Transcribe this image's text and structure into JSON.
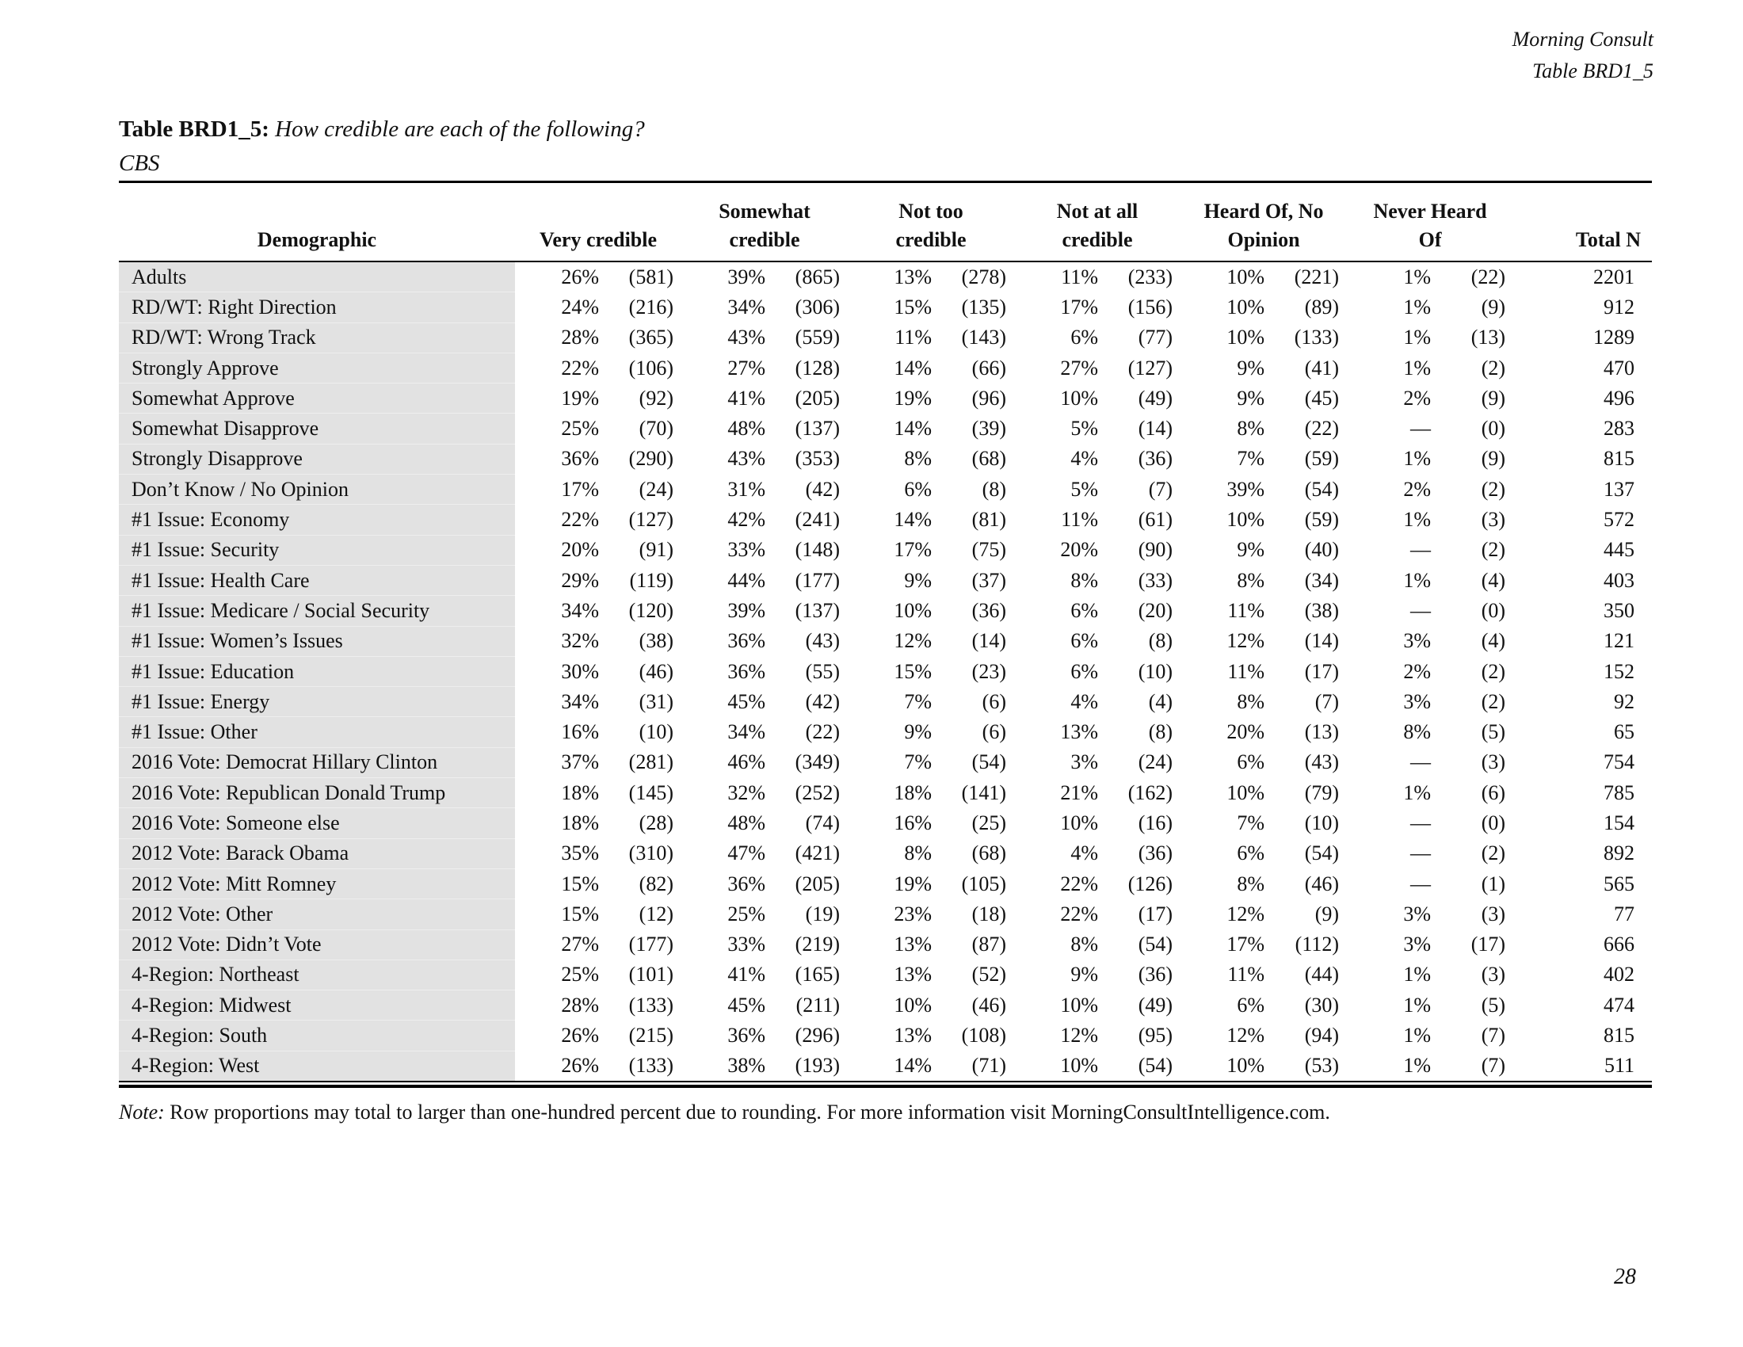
{
  "document": {
    "brand": "Morning Consult",
    "table_ref": "Table BRD1_5",
    "title_prefix": "Table BRD1_5:",
    "title_question": "How credible are each of the following?",
    "subtitle": "CBS",
    "note_label": "Note:",
    "note_body": "Row proportions may total to larger than one-hundred percent due to rounding. For more information visit MorningConsultIntelligence.com.",
    "page_number": "28"
  },
  "table": {
    "header": {
      "demographic": "Demographic",
      "categories": [
        {
          "line1": "",
          "line2": "Very credible"
        },
        {
          "line1": "Somewhat",
          "line2": "credible"
        },
        {
          "line1": "Not too",
          "line2": "credible"
        },
        {
          "line1": "Not at all",
          "line2": "credible"
        },
        {
          "line1": "Heard Of, No",
          "line2": "Opinion"
        },
        {
          "line1": "Never Heard",
          "line2": "Of"
        }
      ],
      "total": "Total N"
    },
    "rows": [
      {
        "label": "Adults",
        "cells": [
          {
            "pct": "26%",
            "n": "(581)"
          },
          {
            "pct": "39%",
            "n": "(865)"
          },
          {
            "pct": "13%",
            "n": "(278)"
          },
          {
            "pct": "11%",
            "n": "(233)"
          },
          {
            "pct": "10%",
            "n": "(221)"
          },
          {
            "pct": "1%",
            "n": "(22)"
          }
        ],
        "total": "2201"
      },
      {
        "label": "RD/WT: Right Direction",
        "cells": [
          {
            "pct": "24%",
            "n": "(216)"
          },
          {
            "pct": "34%",
            "n": "(306)"
          },
          {
            "pct": "15%",
            "n": "(135)"
          },
          {
            "pct": "17%",
            "n": "(156)"
          },
          {
            "pct": "10%",
            "n": "(89)"
          },
          {
            "pct": "1%",
            "n": "(9)"
          }
        ],
        "total": "912"
      },
      {
        "label": "RD/WT: Wrong Track",
        "cells": [
          {
            "pct": "28%",
            "n": "(365)"
          },
          {
            "pct": "43%",
            "n": "(559)"
          },
          {
            "pct": "11%",
            "n": "(143)"
          },
          {
            "pct": "6%",
            "n": "(77)"
          },
          {
            "pct": "10%",
            "n": "(133)"
          },
          {
            "pct": "1%",
            "n": "(13)"
          }
        ],
        "total": "1289"
      },
      {
        "label": "Strongly Approve",
        "cells": [
          {
            "pct": "22%",
            "n": "(106)"
          },
          {
            "pct": "27%",
            "n": "(128)"
          },
          {
            "pct": "14%",
            "n": "(66)"
          },
          {
            "pct": "27%",
            "n": "(127)"
          },
          {
            "pct": "9%",
            "n": "(41)"
          },
          {
            "pct": "1%",
            "n": "(2)"
          }
        ],
        "total": "470"
      },
      {
        "label": "Somewhat Approve",
        "cells": [
          {
            "pct": "19%",
            "n": "(92)"
          },
          {
            "pct": "41%",
            "n": "(205)"
          },
          {
            "pct": "19%",
            "n": "(96)"
          },
          {
            "pct": "10%",
            "n": "(49)"
          },
          {
            "pct": "9%",
            "n": "(45)"
          },
          {
            "pct": "2%",
            "n": "(9)"
          }
        ],
        "total": "496"
      },
      {
        "label": "Somewhat Disapprove",
        "cells": [
          {
            "pct": "25%",
            "n": "(70)"
          },
          {
            "pct": "48%",
            "n": "(137)"
          },
          {
            "pct": "14%",
            "n": "(39)"
          },
          {
            "pct": "5%",
            "n": "(14)"
          },
          {
            "pct": "8%",
            "n": "(22)"
          },
          {
            "pct": "—",
            "n": "(0)"
          }
        ],
        "total": "283"
      },
      {
        "label": "Strongly Disapprove",
        "cells": [
          {
            "pct": "36%",
            "n": "(290)"
          },
          {
            "pct": "43%",
            "n": "(353)"
          },
          {
            "pct": "8%",
            "n": "(68)"
          },
          {
            "pct": "4%",
            "n": "(36)"
          },
          {
            "pct": "7%",
            "n": "(59)"
          },
          {
            "pct": "1%",
            "n": "(9)"
          }
        ],
        "total": "815"
      },
      {
        "label": "Don’t Know / No Opinion",
        "cells": [
          {
            "pct": "17%",
            "n": "(24)"
          },
          {
            "pct": "31%",
            "n": "(42)"
          },
          {
            "pct": "6%",
            "n": "(8)"
          },
          {
            "pct": "5%",
            "n": "(7)"
          },
          {
            "pct": "39%",
            "n": "(54)"
          },
          {
            "pct": "2%",
            "n": "(2)"
          }
        ],
        "total": "137"
      },
      {
        "label": "#1 Issue: Economy",
        "cells": [
          {
            "pct": "22%",
            "n": "(127)"
          },
          {
            "pct": "42%",
            "n": "(241)"
          },
          {
            "pct": "14%",
            "n": "(81)"
          },
          {
            "pct": "11%",
            "n": "(61)"
          },
          {
            "pct": "10%",
            "n": "(59)"
          },
          {
            "pct": "1%",
            "n": "(3)"
          }
        ],
        "total": "572"
      },
      {
        "label": "#1 Issue: Security",
        "cells": [
          {
            "pct": "20%",
            "n": "(91)"
          },
          {
            "pct": "33%",
            "n": "(148)"
          },
          {
            "pct": "17%",
            "n": "(75)"
          },
          {
            "pct": "20%",
            "n": "(90)"
          },
          {
            "pct": "9%",
            "n": "(40)"
          },
          {
            "pct": "—",
            "n": "(2)"
          }
        ],
        "total": "445"
      },
      {
        "label": "#1 Issue: Health Care",
        "cells": [
          {
            "pct": "29%",
            "n": "(119)"
          },
          {
            "pct": "44%",
            "n": "(177)"
          },
          {
            "pct": "9%",
            "n": "(37)"
          },
          {
            "pct": "8%",
            "n": "(33)"
          },
          {
            "pct": "8%",
            "n": "(34)"
          },
          {
            "pct": "1%",
            "n": "(4)"
          }
        ],
        "total": "403"
      },
      {
        "label": "#1 Issue: Medicare / Social Security",
        "cells": [
          {
            "pct": "34%",
            "n": "(120)"
          },
          {
            "pct": "39%",
            "n": "(137)"
          },
          {
            "pct": "10%",
            "n": "(36)"
          },
          {
            "pct": "6%",
            "n": "(20)"
          },
          {
            "pct": "11%",
            "n": "(38)"
          },
          {
            "pct": "—",
            "n": "(0)"
          }
        ],
        "total": "350"
      },
      {
        "label": "#1 Issue: Women’s Issues",
        "cells": [
          {
            "pct": "32%",
            "n": "(38)"
          },
          {
            "pct": "36%",
            "n": "(43)"
          },
          {
            "pct": "12%",
            "n": "(14)"
          },
          {
            "pct": "6%",
            "n": "(8)"
          },
          {
            "pct": "12%",
            "n": "(14)"
          },
          {
            "pct": "3%",
            "n": "(4)"
          }
        ],
        "total": "121"
      },
      {
        "label": "#1 Issue: Education",
        "cells": [
          {
            "pct": "30%",
            "n": "(46)"
          },
          {
            "pct": "36%",
            "n": "(55)"
          },
          {
            "pct": "15%",
            "n": "(23)"
          },
          {
            "pct": "6%",
            "n": "(10)"
          },
          {
            "pct": "11%",
            "n": "(17)"
          },
          {
            "pct": "2%",
            "n": "(2)"
          }
        ],
        "total": "152"
      },
      {
        "label": "#1 Issue: Energy",
        "cells": [
          {
            "pct": "34%",
            "n": "(31)"
          },
          {
            "pct": "45%",
            "n": "(42)"
          },
          {
            "pct": "7%",
            "n": "(6)"
          },
          {
            "pct": "4%",
            "n": "(4)"
          },
          {
            "pct": "8%",
            "n": "(7)"
          },
          {
            "pct": "3%",
            "n": "(2)"
          }
        ],
        "total": "92"
      },
      {
        "label": "#1 Issue: Other",
        "cells": [
          {
            "pct": "16%",
            "n": "(10)"
          },
          {
            "pct": "34%",
            "n": "(22)"
          },
          {
            "pct": "9%",
            "n": "(6)"
          },
          {
            "pct": "13%",
            "n": "(8)"
          },
          {
            "pct": "20%",
            "n": "(13)"
          },
          {
            "pct": "8%",
            "n": "(5)"
          }
        ],
        "total": "65"
      },
      {
        "label": "2016 Vote: Democrat Hillary Clinton",
        "cells": [
          {
            "pct": "37%",
            "n": "(281)"
          },
          {
            "pct": "46%",
            "n": "(349)"
          },
          {
            "pct": "7%",
            "n": "(54)"
          },
          {
            "pct": "3%",
            "n": "(24)"
          },
          {
            "pct": "6%",
            "n": "(43)"
          },
          {
            "pct": "—",
            "n": "(3)"
          }
        ],
        "total": "754"
      },
      {
        "label": "2016 Vote: Republican Donald Trump",
        "cells": [
          {
            "pct": "18%",
            "n": "(145)"
          },
          {
            "pct": "32%",
            "n": "(252)"
          },
          {
            "pct": "18%",
            "n": "(141)"
          },
          {
            "pct": "21%",
            "n": "(162)"
          },
          {
            "pct": "10%",
            "n": "(79)"
          },
          {
            "pct": "1%",
            "n": "(6)"
          }
        ],
        "total": "785"
      },
      {
        "label": "2016 Vote: Someone else",
        "cells": [
          {
            "pct": "18%",
            "n": "(28)"
          },
          {
            "pct": "48%",
            "n": "(74)"
          },
          {
            "pct": "16%",
            "n": "(25)"
          },
          {
            "pct": "10%",
            "n": "(16)"
          },
          {
            "pct": "7%",
            "n": "(10)"
          },
          {
            "pct": "—",
            "n": "(0)"
          }
        ],
        "total": "154"
      },
      {
        "label": "2012 Vote: Barack Obama",
        "cells": [
          {
            "pct": "35%",
            "n": "(310)"
          },
          {
            "pct": "47%",
            "n": "(421)"
          },
          {
            "pct": "8%",
            "n": "(68)"
          },
          {
            "pct": "4%",
            "n": "(36)"
          },
          {
            "pct": "6%",
            "n": "(54)"
          },
          {
            "pct": "—",
            "n": "(2)"
          }
        ],
        "total": "892"
      },
      {
        "label": "2012 Vote: Mitt Romney",
        "cells": [
          {
            "pct": "15%",
            "n": "(82)"
          },
          {
            "pct": "36%",
            "n": "(205)"
          },
          {
            "pct": "19%",
            "n": "(105)"
          },
          {
            "pct": "22%",
            "n": "(126)"
          },
          {
            "pct": "8%",
            "n": "(46)"
          },
          {
            "pct": "—",
            "n": "(1)"
          }
        ],
        "total": "565"
      },
      {
        "label": "2012 Vote: Other",
        "cells": [
          {
            "pct": "15%",
            "n": "(12)"
          },
          {
            "pct": "25%",
            "n": "(19)"
          },
          {
            "pct": "23%",
            "n": "(18)"
          },
          {
            "pct": "22%",
            "n": "(17)"
          },
          {
            "pct": "12%",
            "n": "(9)"
          },
          {
            "pct": "3%",
            "n": "(3)"
          }
        ],
        "total": "77"
      },
      {
        "label": "2012 Vote: Didn’t Vote",
        "cells": [
          {
            "pct": "27%",
            "n": "(177)"
          },
          {
            "pct": "33%",
            "n": "(219)"
          },
          {
            "pct": "13%",
            "n": "(87)"
          },
          {
            "pct": "8%",
            "n": "(54)"
          },
          {
            "pct": "17%",
            "n": "(112)"
          },
          {
            "pct": "3%",
            "n": "(17)"
          }
        ],
        "total": "666"
      },
      {
        "label": "4-Region: Northeast",
        "cells": [
          {
            "pct": "25%",
            "n": "(101)"
          },
          {
            "pct": "41%",
            "n": "(165)"
          },
          {
            "pct": "13%",
            "n": "(52)"
          },
          {
            "pct": "9%",
            "n": "(36)"
          },
          {
            "pct": "11%",
            "n": "(44)"
          },
          {
            "pct": "1%",
            "n": "(3)"
          }
        ],
        "total": "402"
      },
      {
        "label": "4-Region: Midwest",
        "cells": [
          {
            "pct": "28%",
            "n": "(133)"
          },
          {
            "pct": "45%",
            "n": "(211)"
          },
          {
            "pct": "10%",
            "n": "(46)"
          },
          {
            "pct": "10%",
            "n": "(49)"
          },
          {
            "pct": "6%",
            "n": "(30)"
          },
          {
            "pct": "1%",
            "n": "(5)"
          }
        ],
        "total": "474"
      },
      {
        "label": "4-Region: South",
        "cells": [
          {
            "pct": "26%",
            "n": "(215)"
          },
          {
            "pct": "36%",
            "n": "(296)"
          },
          {
            "pct": "13%",
            "n": "(108)"
          },
          {
            "pct": "12%",
            "n": "(95)"
          },
          {
            "pct": "12%",
            "n": "(94)"
          },
          {
            "pct": "1%",
            "n": "(7)"
          }
        ],
        "total": "815"
      },
      {
        "label": "4-Region: West",
        "cells": [
          {
            "pct": "26%",
            "n": "(133)"
          },
          {
            "pct": "38%",
            "n": "(193)"
          },
          {
            "pct": "14%",
            "n": "(71)"
          },
          {
            "pct": "10%",
            "n": "(54)"
          },
          {
            "pct": "10%",
            "n": "(53)"
          },
          {
            "pct": "1%",
            "n": "(7)"
          }
        ],
        "total": "511"
      }
    ]
  }
}
